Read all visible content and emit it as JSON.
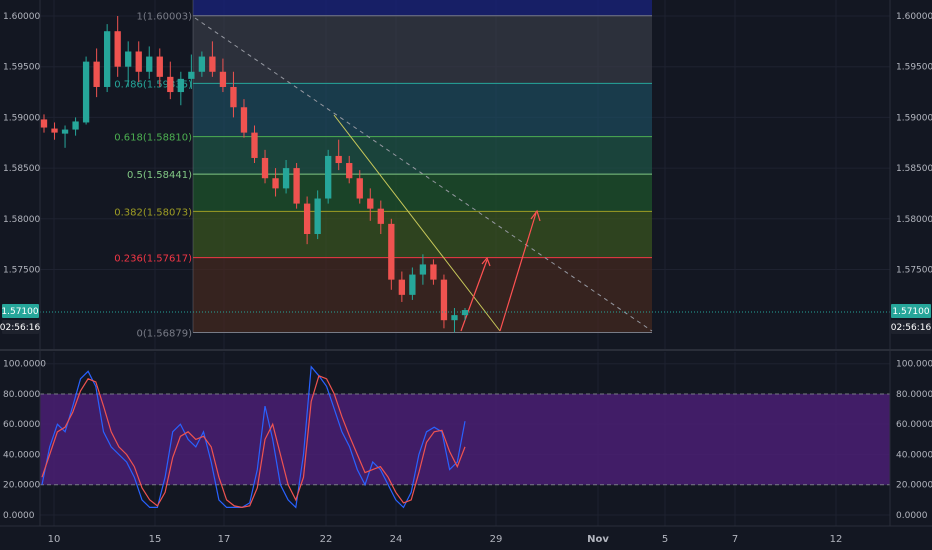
{
  "price_axis": {
    "ticks": [
      "1.60000",
      "1.59500",
      "1.59000",
      "1.58500",
      "1.58000",
      "1.57500"
    ],
    "tick_values": [
      1.6,
      1.595,
      1.59,
      1.585,
      1.58,
      1.575
    ],
    "last_price": "1.57100",
    "countdown": "02:56:16",
    "last_price_value": 1.571
  },
  "osc_axis": {
    "ticks": [
      "100.0000",
      "80.0000",
      "60.0000",
      "40.0000",
      "20.0000",
      "0.0000"
    ],
    "tick_values": [
      100,
      80,
      60,
      40,
      20,
      0
    ],
    "band_upper": 80,
    "band_lower": 20
  },
  "time_axis": {
    "labels": [
      "10",
      "15",
      "17",
      "22",
      "24",
      "29",
      "Nov",
      "5",
      "7",
      "12"
    ]
  },
  "fibonacci": {
    "levels": [
      {
        "label": "1(1.60003)",
        "value": 1.60003,
        "color": "#787b86"
      },
      {
        "label": "0.786(1.59335)",
        "value": 1.59335,
        "color": "#26a69a"
      },
      {
        "label": "0.618(1.58810)",
        "value": 1.5881,
        "color": "#4caf50"
      },
      {
        "label": "0.5(1.58441)",
        "value": 1.58441,
        "color": "#81c784"
      },
      {
        "label": "0.382(1.58073)",
        "value": 1.58073,
        "color": "#9e9d24"
      },
      {
        "label": "0.236(1.57617)",
        "value": 1.57617,
        "color": "#f23645"
      },
      {
        "label": "0(1.56879)",
        "value": 1.56879,
        "color": "#787b86"
      }
    ]
  },
  "colors": {
    "background": "#131722",
    "grid": "#1e2230",
    "up_candle": "#26a69a",
    "down_candle": "#ef5350",
    "k_line": "#2962ff",
    "d_line": "#ef5350",
    "osc_band": "#4a1f73",
    "arrow": "#ff5252",
    "trendline": "#c8c85a",
    "dashed_line": "#9598a1",
    "price_badge": "#26a69a"
  },
  "chart_data": [
    {
      "type": "candlestick",
      "y_range": [
        1.5678,
        1.6012
      ],
      "ohlc": [
        [
          1.5898,
          1.5903,
          1.5885,
          1.589
        ],
        [
          1.5889,
          1.5895,
          1.5878,
          1.5885
        ],
        [
          1.5884,
          1.5892,
          1.587,
          1.5888
        ],
        [
          1.5888,
          1.59,
          1.5882,
          1.5896
        ],
        [
          1.5895,
          1.596,
          1.5893,
          1.5955
        ],
        [
          1.5955,
          1.5968,
          1.592,
          1.593
        ],
        [
          1.593,
          1.5992,
          1.5925,
          1.5985
        ],
        [
          1.5985,
          1.6,
          1.594,
          1.595
        ],
        [
          1.595,
          1.5975,
          1.593,
          1.5965
        ],
        [
          1.5965,
          1.5975,
          1.5935,
          1.5945
        ],
        [
          1.5945,
          1.597,
          1.5938,
          1.596
        ],
        [
          1.596,
          1.5968,
          1.593,
          1.594
        ],
        [
          1.594,
          1.5955,
          1.5918,
          1.5925
        ],
        [
          1.5925,
          1.5945,
          1.5912,
          1.5938
        ],
        [
          1.5938,
          1.5962,
          1.5928,
          1.5945
        ],
        [
          1.5945,
          1.5965,
          1.594,
          1.596
        ],
        [
          1.596,
          1.5975,
          1.594,
          1.5945
        ],
        [
          1.5945,
          1.5958,
          1.5925,
          1.593
        ],
        [
          1.593,
          1.5945,
          1.59,
          1.591
        ],
        [
          1.591,
          1.5918,
          1.588,
          1.5885
        ],
        [
          1.5885,
          1.5892,
          1.5855,
          1.586
        ],
        [
          1.586,
          1.5868,
          1.5835,
          1.584
        ],
        [
          1.584,
          1.585,
          1.5822,
          1.583
        ],
        [
          1.583,
          1.5858,
          1.5825,
          1.585
        ],
        [
          1.585,
          1.5855,
          1.581,
          1.5815
        ],
        [
          1.5815,
          1.5822,
          1.5775,
          1.5785
        ],
        [
          1.5785,
          1.5828,
          1.578,
          1.582
        ],
        [
          1.582,
          1.5868,
          1.5815,
          1.5862
        ],
        [
          1.5862,
          1.5878,
          1.5848,
          1.5855
        ],
        [
          1.5855,
          1.5862,
          1.5835,
          1.584
        ],
        [
          1.584,
          1.5848,
          1.5815,
          1.582
        ],
        [
          1.582,
          1.583,
          1.5798,
          1.581
        ],
        [
          1.581,
          1.5818,
          1.5785,
          1.5795
        ],
        [
          1.5795,
          1.58,
          1.573,
          1.574
        ],
        [
          1.574,
          1.5748,
          1.5718,
          1.5725
        ],
        [
          1.5725,
          1.5752,
          1.572,
          1.5745
        ],
        [
          1.5745,
          1.5765,
          1.5735,
          1.5755
        ],
        [
          1.5755,
          1.576,
          1.5735,
          1.574
        ],
        [
          1.574,
          1.5745,
          1.5692,
          1.57
        ],
        [
          1.57,
          1.5712,
          1.5688,
          1.5705
        ],
        [
          1.5705,
          1.5712,
          1.57,
          1.571
        ]
      ]
    },
    {
      "type": "line",
      "y_range": [
        0,
        100
      ],
      "series": [
        {
          "values": [
            20,
            45,
            60,
            55,
            72,
            90,
            95,
            85,
            55,
            45,
            40,
            35,
            25,
            10,
            5,
            5,
            25,
            55,
            60,
            50,
            45,
            55,
            35,
            10,
            5,
            5,
            5,
            8,
            30,
            72,
            50,
            20,
            10,
            5,
            40,
            98,
            92,
            85,
            70,
            55,
            45,
            30,
            20,
            35,
            30,
            20,
            10,
            5,
            15,
            40,
            55,
            58,
            55,
            30,
            35,
            62
          ]
        },
        {
          "values": [
            25,
            40,
            55,
            58,
            68,
            82,
            90,
            88,
            72,
            55,
            45,
            40,
            32,
            18,
            10,
            6,
            15,
            38,
            52,
            55,
            50,
            52,
            45,
            25,
            10,
            6,
            5,
            6,
            18,
            50,
            60,
            40,
            20,
            10,
            25,
            75,
            92,
            90,
            80,
            65,
            52,
            40,
            28,
            30,
            32,
            25,
            15,
            8,
            10,
            28,
            48,
            55,
            56,
            42,
            32,
            45
          ]
        }
      ]
    }
  ]
}
